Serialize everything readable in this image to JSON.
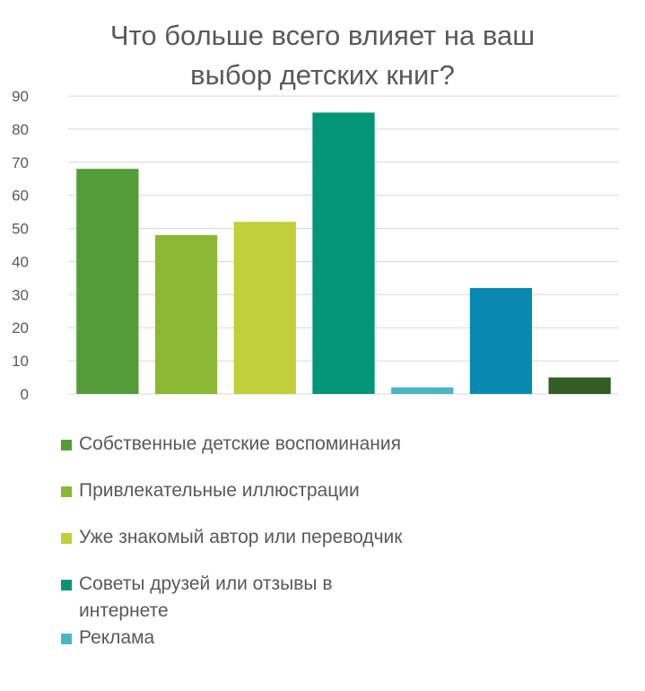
{
  "chart_data": {
    "type": "bar",
    "title": "Что больше всего влияет на ваш выбор детских книг?",
    "title_lines": [
      "Что больше всего влияет на ваш",
      "выбор детских книг?"
    ],
    "xlabel": "",
    "ylabel": "",
    "ylim": [
      0,
      90
    ],
    "y_ticks": [
      0,
      10,
      20,
      30,
      40,
      50,
      60,
      70,
      80,
      90
    ],
    "y_tick_labels": [
      "0",
      "10",
      "20",
      "30",
      "40",
      "50",
      "60",
      "70",
      "80",
      "90"
    ],
    "grid": true,
    "legend_position": "bottom",
    "series": [
      {
        "name": "Собственные детские воспоминания",
        "value": 68,
        "color": "#549e39"
      },
      {
        "name": "Привлекательные иллюстрации",
        "value": 48,
        "color": "#8ab833"
      },
      {
        "name": "Уже знакомый автор или переводчик",
        "value": 52,
        "color": "#c0cf3a"
      },
      {
        "name": "Советы друзей или отзывы в интернете",
        "value": 85,
        "color": "#029676"
      },
      {
        "name": "Реклама",
        "value": 2,
        "color": "#4ab5c4"
      },
      {
        "name": "",
        "value": 32,
        "color": "#0989b1"
      },
      {
        "name": "",
        "value": 5,
        "color": "#325e26"
      }
    ],
    "legend_visible": [
      {
        "label_lines": [
          "Собственные детские воспоминания"
        ],
        "color": "#549e39"
      },
      {
        "label_lines": [
          "Привлекательные иллюстрации"
        ],
        "color": "#8ab833"
      },
      {
        "label_lines": [
          "Уже знакомый автор или переводчик"
        ],
        "color": "#c0cf3a"
      },
      {
        "label_lines": [
          "Советы друзей или отзывы в",
          "интернете"
        ],
        "color": "#029676"
      },
      {
        "label_lines": [
          "Реклама"
        ],
        "color": "#4ab5c4"
      }
    ]
  },
  "colors": {
    "text": "#595959",
    "grid": "#d9d9d9"
  }
}
